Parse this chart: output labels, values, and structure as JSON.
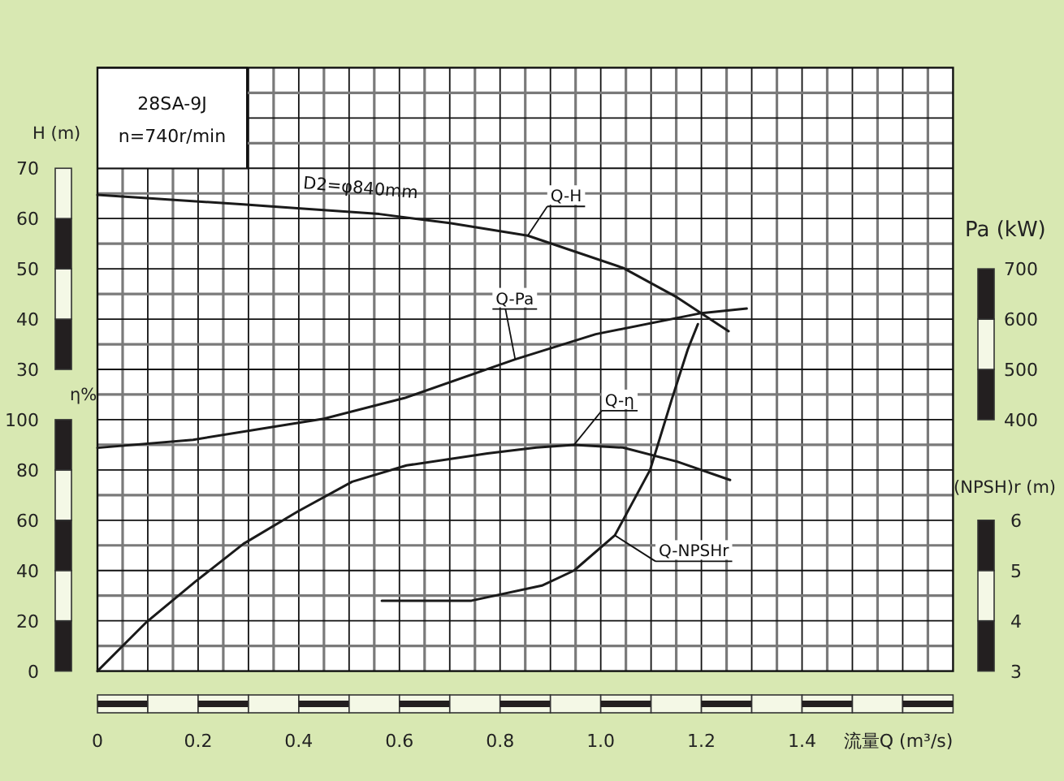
{
  "chart_data": [
    {
      "type": "line",
      "title": "28SA-9J",
      "subtitle": "n=740r/min",
      "xlabel": "流量Q (m³/s)",
      "ylabel": "H (m)",
      "y2label": "Pa (kW)",
      "annotations": [
        "D2=φ840mm"
      ],
      "xlim": [
        0,
        1.7
      ],
      "xticks": [
        0,
        {
          "value": 0.1,
          "label": null
        },
        0.2,
        {
          "value": 0.3,
          "label": null
        },
        0.4,
        {
          "value": 0.5,
          "label": null
        },
        0.6,
        {
          "value": 0.7,
          "label": null
        },
        0.8,
        {
          "value": 0.9,
          "label": null
        },
        {
          "value": 1,
          "label": "1.0"
        },
        {
          "value": 1.1,
          "label": null
        },
        1.2,
        {
          "value": 1.3,
          "label": null
        },
        1.4,
        {
          "value": 1.5,
          "label": null
        },
        {
          "value": 1.6,
          "label": null
        }
      ],
      "ylim": [
        -30,
        90
      ],
      "yticks": [
        30,
        40,
        50,
        60,
        70
      ],
      "y2lim": [
        -100,
        1100
      ],
      "y2ticks": [
        400,
        500,
        600,
        700
      ],
      "grid": true,
      "series": [
        {
          "name": "Q-H",
          "color": "#1a1a1a",
          "x": [
            0,
            0.29,
            0.56,
            0.7,
            0.855,
            1.044,
            1.152,
            1.254
          ],
          "values": [
            64.7,
            62.8,
            60.9,
            59.1,
            56.6,
            50.2,
            44.3,
            37.6
          ]
        },
        {
          "name": "Q-Pa",
          "color": "#1a1a1a",
          "axis": "y2",
          "x": [
            0,
            0.19,
            0.45,
            0.61,
            0.83,
            0.99,
            1.2,
            1.29
          ],
          "values": [
            344,
            360,
            402,
            443,
            520,
            570,
            612,
            621
          ]
        }
      ]
    },
    {
      "type": "line",
      "ylabel": "η%",
      "y2label": "(NPSH)r (m)",
      "tick_labels": "y",
      "xlim": [
        0,
        1.7
      ],
      "ylim": [
        0,
        240
      ],
      "yticks": [
        0,
        20,
        40,
        60,
        80,
        100
      ],
      "y2lim": [
        3,
        15
      ],
      "y2ticks": [
        3,
        4,
        5,
        6
      ],
      "series": [
        {
          "name": "Q-η",
          "color": "#1a1a1a",
          "x": [
            0,
            0.097,
            0.194,
            0.29,
            0.398,
            0.506,
            0.614,
            0.775,
            0.872,
            0.947,
            1.044,
            1.152,
            1.257
          ],
          "values": [
            0,
            19.4,
            35.5,
            50.6,
            63.5,
            75.3,
            81.8,
            86.6,
            88.9,
            90,
            88.9,
            83.3,
            76
          ]
        },
        {
          "name": "Q-NPSHr",
          "color": "#1a1a1a",
          "axis": "y2",
          "x": [
            0.565,
            0.743,
            0.883,
            0.947,
            1.028,
            1.098,
            1.141,
            1.173,
            1.193
          ],
          "values": [
            4.4,
            4.4,
            4.7,
            5.0,
            5.7,
            7.0,
            8.4,
            9.4,
            9.9
          ]
        }
      ]
    }
  ]
}
